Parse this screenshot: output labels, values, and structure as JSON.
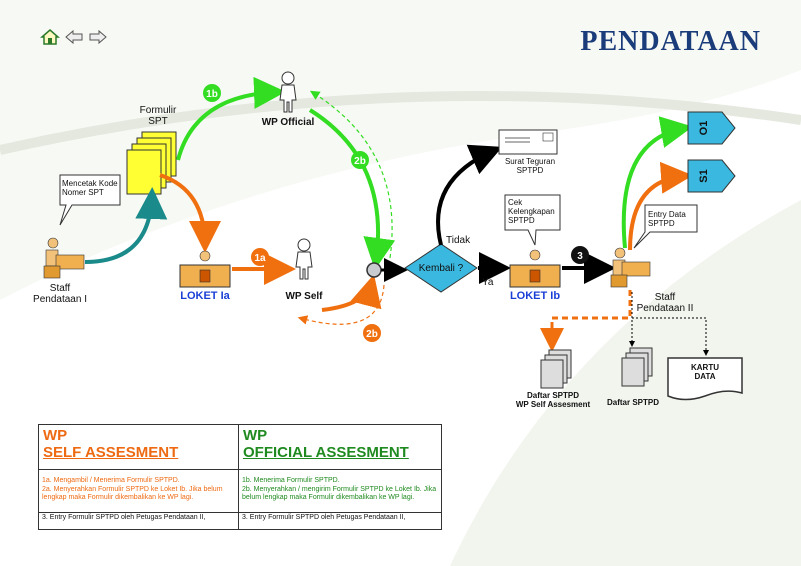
{
  "page": {
    "title": "PENDATAAN"
  },
  "nav": {
    "home_icon": "home-icon",
    "back_icon": "arrow-left-icon",
    "forward_icon": "arrow-right-icon"
  },
  "diagram": {
    "formulir_spt": "Formulir\nSPT",
    "mencetak_callout": "Mencetak Kode\nNomer SPT",
    "staff_pendataan_1": "Staff\nPendataan I",
    "loket_1a": "LOKET Ia",
    "wp_self": "WP Self",
    "wp_official": "WP Official",
    "step_1a": "1a",
    "step_1b": "1b",
    "step_2b_top": "2b",
    "step_2b_bottom": "2b",
    "step_3": "3",
    "decision": "Kembali ?",
    "tidak": "Tidak",
    "ya": "Ya",
    "surat_teguran": "Surat Teguran\nSPTPD",
    "cek_callout": "Cek\nKelengkapan\nSPTPD",
    "loket_1b": "LOKET Ib",
    "entry_callout": "Entry Data\nSPTPD",
    "staff_pendataan_2": "Staff\nPendataan  II",
    "o1": "O1",
    "s1": "S1",
    "daftar_sptpd_self": "Daftar SPTPD\nWP Self Assesment",
    "daftar_sptpd": "Daftar SPTPD",
    "kartu_data": "KARTU\nDATA"
  },
  "self_box": {
    "head1": "WP",
    "head2": "SELF ASSESMENT",
    "line1": "1a. Mengambil / Menerima Formulir SPTPD.",
    "line2": "2a. Menyerahkan Formulir SPTPD ke Loket Ib. Jika belum lengkap maka Formulir dikembalikan ke WP lagi.",
    "line3": "3. Entry Formulir SPTPD oleh Petugas Pendataan II,"
  },
  "official_box": {
    "head1": "WP",
    "head2": "OFFICIAL ASSESMENT",
    "line1": "1b. Menerima Formulir SPTPD.",
    "line2": "2b. Menyerahkan / mengirim Formulir SPTPD ke Loket Ib. Jika belum lengkap maka Formulir dikembalikan ke WP lagi.",
    "line3": "3. Entry Formulir SPTPD oleh Petugas Pendataan II,"
  },
  "colors": {
    "green": "#33dd22",
    "orange": "#f07010",
    "teal": "#1a8a8a",
    "navy": "#1b3c7a",
    "diamond": "#3ab8e0"
  }
}
